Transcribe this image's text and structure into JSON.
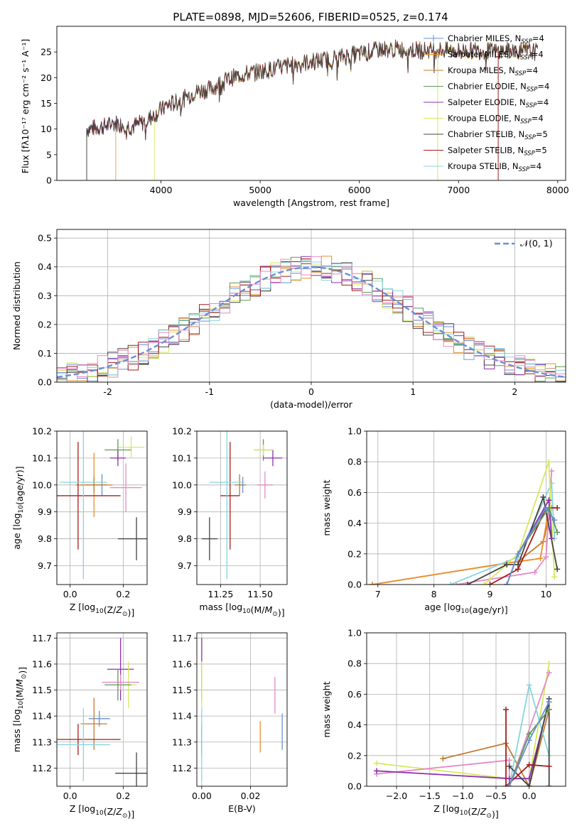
{
  "figure": {
    "title": "PLATE=0898, MJD=52606, FIBERID=0525, z=0.174",
    "colors": {
      "chabrier_miles": "#6a8fd6",
      "salpeter_miles": "#e8902e",
      "kroupa_miles": "#c5792f",
      "chabrier_elodie": "#5c9a55",
      "salpeter_elodie": "#8e2fb1",
      "kroupa_elodie": "#d7e85f",
      "chabrier_stelib": "#444444",
      "salpeter_stelib": "#a51d1d",
      "kroupa_stelib": "#86d6dc",
      "pink": "#e58bc4",
      "gaussian": "#6a8fd6"
    }
  },
  "chart_data": [
    {
      "id": "spectrum",
      "type": "line",
      "xlabel": "wavelength [Angstrom, rest frame]",
      "ylabel": "Flux [fλ10⁻¹⁷ erg cm⁻² s⁻¹ A⁻¹]",
      "xlim": [
        2950,
        8080
      ],
      "ylim": [
        0,
        30
      ],
      "xticks": [
        4000,
        5000,
        6000,
        7000,
        8000
      ],
      "yticks": [
        0,
        5,
        10,
        15,
        20,
        25
      ],
      "grid": false,
      "legend_position": "right",
      "legend": [
        {
          "label": "Chabrier MILES, N",
          "sub": "SSP",
          "suffix": "=4",
          "color": "#6a8fd6",
          "marker": "+"
        },
        {
          "label": "Salpeter MILES, N",
          "sub": "SSP",
          "suffix": "=4",
          "color": "#e8902e",
          "marker": "+"
        },
        {
          "label": "Kroupa MILES, N",
          "sub": "SSP",
          "suffix": "=4",
          "color": "#c5792f",
          "marker": ""
        },
        {
          "label": "Chabrier ELODIE, N",
          "sub": "SSP",
          "suffix": "=4",
          "color": "#5c9a55",
          "marker": ""
        },
        {
          "label": "Salpeter ELODIE, N",
          "sub": "SSP",
          "suffix": "=4",
          "color": "#8e2fb1",
          "marker": ""
        },
        {
          "label": "Kroupa ELODIE, N",
          "sub": "SSP",
          "suffix": "=4",
          "color": "#d7e85f",
          "marker": ""
        },
        {
          "label": "Chabrier STELIB, N",
          "sub": "SSP",
          "suffix": "=5",
          "color": "#444444",
          "marker": ""
        },
        {
          "label": "Salpeter STELIB, N",
          "sub": "SSP",
          "suffix": "=5",
          "color": "#a51d1d",
          "marker": ""
        },
        {
          "label": "Kroupa STELIB, N",
          "sub": "SSP",
          "suffix": "=4",
          "color": "#86d6dc",
          "marker": ""
        }
      ],
      "continuum": [
        [
          3250,
          10
        ],
        [
          3400,
          10.4
        ],
        [
          3550,
          11.2
        ],
        [
          3700,
          10.4
        ],
        [
          3850,
          11.6
        ],
        [
          3950,
          13
        ],
        [
          4050,
          14.5
        ],
        [
          4200,
          15.5
        ],
        [
          4350,
          17.3
        ],
        [
          4500,
          17.8
        ],
        [
          4650,
          19.5
        ],
        [
          4800,
          20.5
        ],
        [
          5000,
          21.2
        ],
        [
          5200,
          22
        ],
        [
          5400,
          22.8
        ],
        [
          5600,
          23.3
        ],
        [
          5800,
          24
        ],
        [
          6000,
          24.6
        ],
        [
          6200,
          25.5
        ],
        [
          6400,
          25.6
        ],
        [
          6600,
          25.3
        ],
        [
          6800,
          25.4
        ],
        [
          7000,
          25.2
        ],
        [
          7200,
          25.3
        ],
        [
          7400,
          25.1
        ],
        [
          7600,
          25.2
        ],
        [
          7800,
          25
        ]
      ],
      "noise_amplitude": 1.6,
      "model_starts": [
        {
          "model": "salpeter_miles",
          "start": 3540
        },
        {
          "model": "kroupa_elodie",
          "start": 3930
        },
        {
          "model": "kroupa_elodie_gap",
          "start": 6790
        },
        {
          "model": "salpeter_stelib_gap",
          "start": 7400
        }
      ]
    },
    {
      "id": "residual_hist",
      "type": "bar",
      "xlabel": "(data-model)/error",
      "ylabel": "Normed distribution",
      "xlim": [
        -2.5,
        2.5
      ],
      "ylim": [
        0,
        0.53
      ],
      "xticks": [
        -2,
        -1,
        0,
        1,
        2
      ],
      "yticks": [
        0.0,
        0.1,
        0.2,
        0.3,
        0.4,
        0.5
      ],
      "grid": true,
      "legend": [
        {
          "label": "𝒩(0, 1)",
          "color": "#6a8fd6",
          "style": "dashed"
        }
      ],
      "legend_position": "top-right",
      "bin_width": 0.1,
      "series_colors": [
        "#6a8fd6",
        "#e8902e",
        "#5c9a55",
        "#8e2fb1",
        "#d7e85f",
        "#444444",
        "#a51d1d",
        "#86d6dc",
        "#e58bc4"
      ],
      "gaussian": {
        "mu": 0,
        "sigma": 1
      }
    },
    {
      "id": "age_vs_Z",
      "type": "scatter",
      "xlabel": "Z [log10(Z/Z⊙)]",
      "ylabel": "age  [log10(age/yr)]",
      "xlim": [
        -0.05,
        0.29
      ],
      "ylim": [
        9.63,
        10.2
      ],
      "xticks": [
        0.0,
        0.2
      ],
      "xtick_labels": [
        "0.0",
        "0.2"
      ],
      "yticks": [
        9.7,
        9.8,
        9.9,
        10.0,
        10.1,
        10.2
      ],
      "grid": true,
      "points": [
        {
          "x": 0.23,
          "y": 10.14,
          "xerr": 0.05,
          "yerr": 0.04,
          "color": "#d7e85f"
        },
        {
          "x": 0.18,
          "y": 10.13,
          "xerr": 0.05,
          "yerr": 0.04,
          "color": "#5c9a55"
        },
        {
          "x": 0.18,
          "y": 10.1,
          "xerr": 0.03,
          "yerr": 0.03,
          "color": "#8e2fb1"
        },
        {
          "x": 0.12,
          "y": 10.0,
          "xerr": 0.04,
          "yerr": 0.04,
          "color": "#6a8fd6"
        },
        {
          "x": 0.09,
          "y": 10.0,
          "xerr": 0.07,
          "yerr": 0.12,
          "color": "#e8902e"
        },
        {
          "x": 0.09,
          "y": 10.0,
          "xerr": 0.05,
          "yerr": 0.03,
          "color": "#c5792f"
        },
        {
          "x": 0.21,
          "y": 9.99,
          "xerr": 0.06,
          "yerr": 0.09,
          "color": "#e58bc4"
        },
        {
          "x": 0.03,
          "y": 9.96,
          "xerr": 0.16,
          "yerr": 0.2,
          "color": "#a51d1d"
        },
        {
          "x": 0.05,
          "y": 10.01,
          "xerr": 0.09,
          "yerr": 0.36,
          "color": "#86d6dc"
        },
        {
          "x": 0.25,
          "y": 9.8,
          "xerr": 0.07,
          "yerr": 0.08,
          "color": "#444444"
        }
      ]
    },
    {
      "id": "age_vs_mass",
      "type": "scatter",
      "xlabel": "mass [log10(M/M⊙)]",
      "ylabel": "",
      "xlim": [
        11.1,
        11.67
      ],
      "ylim": [
        9.63,
        10.2
      ],
      "xticks": [
        11.25,
        11.5
      ],
      "xtick_labels": [
        "11.25",
        "11.50"
      ],
      "yticks": [
        9.7,
        9.8,
        9.9,
        10.0,
        10.1,
        10.2
      ],
      "grid": true,
      "points": [
        {
          "x": 11.52,
          "y": 10.13,
          "xerr": 0.06,
          "yerr": 0.04,
          "color": "#5c9a55"
        },
        {
          "x": 11.58,
          "y": 10.1,
          "xerr": 0.06,
          "yerr": 0.03,
          "color": "#8e2fb1"
        },
        {
          "x": 11.52,
          "y": 10.13,
          "xerr": 0.06,
          "yerr": 0.02,
          "color": "#d7e85f"
        },
        {
          "x": 11.39,
          "y": 10.0,
          "xerr": 0.02,
          "yerr": 0.03,
          "color": "#6a8fd6"
        },
        {
          "x": 11.37,
          "y": 10.0,
          "xerr": 0.03,
          "yerr": 0.04,
          "color": "#c5792f"
        },
        {
          "x": 11.53,
          "y": 10.0,
          "xerr": 0.05,
          "yerr": 0.05,
          "color": "#e58bc4"
        },
        {
          "x": 11.31,
          "y": 9.96,
          "xerr": 0.06,
          "yerr": 0.2,
          "color": "#a51d1d"
        },
        {
          "x": 11.29,
          "y": 10.01,
          "xerr": 0.11,
          "yerr": 0.36,
          "color": "#86d6dc"
        },
        {
          "x": 11.18,
          "y": 9.8,
          "xerr": 0.05,
          "yerr": 0.08,
          "color": "#444444"
        }
      ]
    },
    {
      "id": "weight_vs_age",
      "type": "line",
      "xlabel": "age  [log10(age/yr)]",
      "ylabel": "mass weight",
      "xlim": [
        6.8,
        10.35
      ],
      "ylim": [
        0,
        1.0
      ],
      "xticks": [
        7,
        8,
        9,
        10
      ],
      "yticks": [
        0.0,
        0.2,
        0.4,
        0.6,
        0.8,
        1.0
      ],
      "grid": true,
      "series": [
        {
          "color": "#c5792f",
          "x": [
            6.9,
            9.3,
            9.5,
            9.95,
            10.1
          ],
          "y": [
            0.0,
            0.14,
            0.15,
            0.28,
            0.5
          ]
        },
        {
          "color": "#e8902e",
          "x": [
            6.9,
            9.3,
            9.9,
            10.05
          ],
          "y": [
            0.0,
            0.14,
            0.17,
            0.5
          ]
        },
        {
          "color": "#e58bc4",
          "x": [
            8.4,
            9.8,
            10.0,
            10.1
          ],
          "y": [
            0.0,
            0.08,
            0.18,
            0.74
          ]
        },
        {
          "color": "#86d6dc",
          "x": [
            8.3,
            9.5,
            10.1,
            10.15
          ],
          "y": [
            0.0,
            0.18,
            0.66,
            0.3
          ]
        },
        {
          "color": "#d7e85f",
          "x": [
            8.9,
            9.5,
            10.05,
            10.15
          ],
          "y": [
            0.0,
            0.2,
            0.8,
            0.05
          ]
        },
        {
          "color": "#444444",
          "x": [
            8.6,
            9.3,
            9.5,
            9.95,
            10.2
          ],
          "y": [
            0.0,
            0.13,
            0.13,
            0.57,
            0.1
          ]
        },
        {
          "color": "#a51d1d",
          "x": [
            9.0,
            9.5,
            10.0,
            10.2
          ],
          "y": [
            0.0,
            0.1,
            0.5,
            0.5
          ]
        },
        {
          "color": "#8e2fb1",
          "x": [
            9.3,
            9.5,
            10.05,
            10.1
          ],
          "y": [
            0.0,
            0.2,
            0.55,
            0.3
          ]
        },
        {
          "color": "#5c9a55",
          "x": [
            9.3,
            9.5,
            10.05,
            10.2
          ],
          "y": [
            0.0,
            0.2,
            0.5,
            0.34
          ]
        },
        {
          "color": "#6a8fd6",
          "x": [
            9.3,
            9.5,
            10.0,
            10.15
          ],
          "y": [
            0.0,
            0.2,
            0.5,
            0.42
          ]
        }
      ]
    },
    {
      "id": "mass_vs_Z",
      "type": "scatter",
      "xlabel": "Z [log10(Z/Z⊙)]",
      "ylabel": "mass [log10(M/M⊙)]",
      "xlim": [
        -0.05,
        0.29
      ],
      "ylim": [
        11.13,
        11.72
      ],
      "xticks": [
        0.0,
        0.2
      ],
      "xtick_labels": [
        "0.0",
        "0.2"
      ],
      "yticks": [
        11.2,
        11.3,
        11.4,
        11.5,
        11.6,
        11.7
      ],
      "grid": true,
      "points": [
        {
          "x": 0.19,
          "y": 11.58,
          "xerr": 0.05,
          "yerr": 0.12,
          "color": "#8e2fb1"
        },
        {
          "x": 0.22,
          "y": 11.52,
          "xerr": 0.03,
          "yerr": 0.09,
          "color": "#d7e85f"
        },
        {
          "x": 0.18,
          "y": 11.52,
          "xerr": 0.05,
          "yerr": 0.06,
          "color": "#5c9a55"
        },
        {
          "x": 0.19,
          "y": 11.53,
          "xerr": 0.07,
          "yerr": 0.03,
          "color": "#e58bc4"
        },
        {
          "x": 0.11,
          "y": 11.39,
          "xerr": 0.04,
          "yerr": 0.03,
          "color": "#6a8fd6"
        },
        {
          "x": 0.09,
          "y": 11.37,
          "xerr": 0.05,
          "yerr": 0.1,
          "color": "#c5792f"
        },
        {
          "x": 0.03,
          "y": 11.31,
          "xerr": 0.16,
          "yerr": 0.06,
          "color": "#a51d1d"
        },
        {
          "x": 0.05,
          "y": 11.29,
          "xerr": 0.1,
          "yerr": 0.14,
          "color": "#86d6dc"
        },
        {
          "x": 0.25,
          "y": 11.18,
          "xerr": 0.08,
          "yerr": 0.08,
          "color": "#444444"
        }
      ]
    },
    {
      "id": "mass_vs_ebv",
      "type": "scatter",
      "xlabel": "E(B-V)",
      "ylabel": "",
      "xlim": [
        -0.002,
        0.035
      ],
      "ylim": [
        11.13,
        11.72
      ],
      "xticks": [
        0.0,
        0.02
      ],
      "xtick_labels": [
        "0.00",
        "0.02"
      ],
      "yticks": [
        11.2,
        11.3,
        11.4,
        11.5,
        11.6,
        11.7
      ],
      "grid": true,
      "points": [
        {
          "x": 0.0,
          "y": 11.58,
          "xerr": 0.0,
          "yerr": 0.12,
          "color": "#8e2fb1"
        },
        {
          "x": 0.0,
          "y": 11.52,
          "xerr": 0.0,
          "yerr": 0.09,
          "color": "#d7e85f"
        },
        {
          "x": 0.0,
          "y": 11.31,
          "xerr": 0.0,
          "yerr": 0.06,
          "color": "#a51d1d"
        },
        {
          "x": 0.0,
          "y": 11.29,
          "xerr": 0.0,
          "yerr": 0.14,
          "color": "#86d6dc"
        },
        {
          "x": 0.03,
          "y": 11.48,
          "xerr": 0.0,
          "yerr": 0.07,
          "color": "#e58bc4"
        },
        {
          "x": 0.024,
          "y": 11.32,
          "xerr": 0.0,
          "yerr": 0.06,
          "color": "#e8902e"
        },
        {
          "x": 0.033,
          "y": 11.34,
          "xerr": 0.0,
          "yerr": 0.07,
          "color": "#6a8fd6"
        }
      ]
    },
    {
      "id": "weight_vs_Z",
      "type": "line",
      "xlabel": "Z [log10(Z/Z⊙)]",
      "ylabel": "mass weight",
      "xlim": [
        -2.45,
        0.55
      ],
      "ylim": [
        0,
        1.0
      ],
      "xticks": [
        -2.0,
        -1.5,
        -1.0,
        -0.5,
        0.0
      ],
      "xtick_labels": [
        "−2.0",
        "−1.5",
        "−1.0",
        "−0.5",
        "0.0"
      ],
      "yticks": [
        0.0,
        0.2,
        0.4,
        0.6,
        0.8,
        1.0
      ],
      "grid": true,
      "series": [
        {
          "color": "#d7e85f",
          "x": [
            -2.3,
            -0.3,
            0.0,
            0.3
          ],
          "y": [
            0.15,
            0.05,
            0.05,
            0.8
          ]
        },
        {
          "color": "#c5792f",
          "x": [
            -1.3,
            -0.35,
            0.0,
            0.3
          ],
          "y": [
            0.18,
            0.28,
            0.0,
            0.5
          ]
        },
        {
          "color": "#e58bc4",
          "x": [
            -2.3,
            -0.3,
            -0.3,
            0.3
          ],
          "y": [
            0.08,
            0.17,
            0.0,
            0.74
          ]
        },
        {
          "color": "#86d6dc",
          "x": [
            -0.3,
            0.0,
            0.3
          ],
          "y": [
            0.0,
            0.66,
            0.2
          ]
        },
        {
          "color": "#8e2fb1",
          "x": [
            -2.3,
            -0.3,
            0.0,
            0.3
          ],
          "y": [
            0.1,
            0.05,
            0.05,
            0.55
          ]
        },
        {
          "color": "#444444",
          "x": [
            -0.3,
            0.0,
            0.3,
            0.3
          ],
          "y": [
            0.13,
            0.0,
            0.57,
            0.0
          ]
        },
        {
          "color": "#a51d1d",
          "x": [
            -0.35,
            -0.35,
            0.0,
            0.3
          ],
          "y": [
            0.5,
            0.0,
            0.14,
            0.13
          ]
        },
        {
          "color": "#5c9a55",
          "x": [
            -0.3,
            0.0,
            0.3
          ],
          "y": [
            0.0,
            0.34,
            0.5
          ]
        },
        {
          "color": "#6a8fd6",
          "x": [
            -0.3,
            0.0,
            0.3
          ],
          "y": [
            0.0,
            0.3,
            0.55
          ]
        }
      ]
    }
  ]
}
